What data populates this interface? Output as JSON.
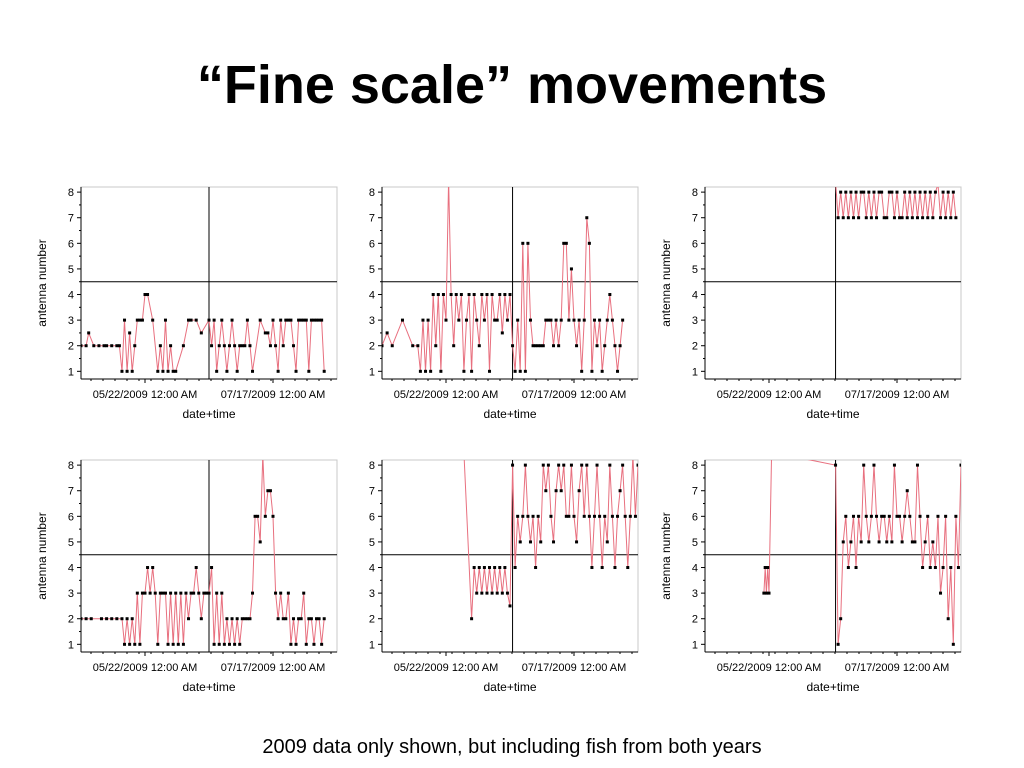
{
  "slide": {
    "title": "“Fine scale” movements",
    "caption": "2009 data only shown, but including fish from both years"
  },
  "colors": {
    "line": "#e8707f",
    "marker": "#000000",
    "reference": "#000000",
    "axis": "#000000"
  },
  "chart_data": [
    {
      "type": "line",
      "xlabel": "date+time",
      "ylabel": "antenna number",
      "x_tick_labels": [
        "05/22/2009 12:00 AM",
        "07/17/2009 12:00 AM"
      ],
      "y_ticks": [
        1,
        2,
        3,
        4,
        5,
        6,
        7,
        8
      ],
      "ylim": [
        0.7,
        8.2
      ],
      "xlim": [
        0,
        100
      ],
      "reference_x": 50,
      "reference_y": 4.5,
      "series": [
        {
          "x": [
            0,
            2,
            3,
            5,
            7,
            9,
            10,
            12,
            14,
            15,
            16,
            17,
            18,
            19,
            20,
            21,
            22,
            23,
            24,
            25,
            26,
            28,
            30,
            31,
            32,
            33,
            34,
            35,
            36,
            37,
            40,
            42,
            43,
            45,
            47,
            50,
            51,
            52,
            53,
            54,
            55,
            56,
            57,
            58,
            59,
            60,
            61,
            62,
            63,
            64,
            65,
            66,
            67,
            70,
            72,
            73,
            74,
            75,
            76,
            77,
            78,
            79,
            80,
            81,
            82,
            83,
            84,
            85,
            86,
            87,
            88,
            89,
            90,
            91,
            92,
            93,
            94,
            95
          ],
          "y": [
            2,
            2,
            2.5,
            2,
            2,
            2,
            2,
            2,
            2,
            2,
            1,
            3,
            1,
            2.5,
            1,
            2,
            3,
            3,
            3,
            4,
            4,
            3,
            1,
            2,
            1,
            3,
            1,
            2,
            1,
            1,
            2,
            3,
            3,
            3,
            2.5,
            3,
            2,
            3,
            1,
            2,
            3,
            2,
            1,
            2,
            3,
            2,
            1,
            2,
            2,
            2,
            3,
            2,
            1,
            3,
            2.5,
            2.5,
            2,
            3,
            2,
            1,
            3,
            2,
            3,
            3,
            3,
            2,
            1,
            3,
            3,
            3,
            3,
            1,
            3,
            3,
            3,
            3,
            3,
            1
          ]
        }
      ]
    },
    {
      "type": "line",
      "xlabel": "date+time",
      "ylabel": "",
      "x_tick_labels": [
        "05/22/2009 12:00 AM",
        "07/17/2009 12:00 AM"
      ],
      "y_ticks": [
        1,
        2,
        3,
        4,
        5,
        6,
        7,
        8
      ],
      "ylim": [
        0.7,
        8.2
      ],
      "xlim": [
        0,
        100
      ],
      "reference_x": 51,
      "reference_y": 4.5,
      "series": [
        {
          "x": [
            0,
            2,
            4,
            8,
            12,
            14,
            15,
            16,
            17,
            18,
            19,
            20,
            21,
            22,
            23,
            24,
            25,
            26,
            27,
            28,
            29,
            30,
            31,
            32,
            33,
            34,
            35,
            36,
            37,
            38,
            39,
            40,
            41,
            42,
            43,
            44,
            45,
            46,
            47,
            48,
            49,
            50,
            51,
            52,
            53,
            54,
            55,
            56,
            57,
            58,
            59,
            60,
            61,
            62,
            63,
            64,
            65,
            66,
            67,
            68,
            69,
            70,
            71,
            72,
            73,
            74,
            75,
            76,
            77,
            78,
            79,
            80,
            81,
            82,
            83,
            84,
            85,
            86,
            87,
            88,
            89,
            90,
            91,
            92,
            93,
            94
          ],
          "y": [
            2,
            2.5,
            2,
            3,
            2,
            2,
            1,
            3,
            1,
            3,
            1,
            4,
            2,
            4,
            1,
            4,
            3,
            8.5,
            4,
            2,
            4,
            3,
            4,
            1,
            3,
            4,
            1,
            4,
            3,
            2,
            4,
            3,
            4,
            1,
            4,
            3,
            3,
            4,
            2.5,
            4,
            3,
            4,
            2,
            1,
            3,
            1,
            6,
            1,
            6,
            3,
            2,
            2,
            2,
            2,
            2,
            3,
            3,
            3,
            2,
            3,
            2,
            3,
            6,
            6,
            3,
            5,
            3,
            2,
            3,
            1,
            3,
            7,
            6,
            1,
            3,
            2,
            3,
            1,
            2,
            3,
            4,
            3,
            2,
            1,
            2,
            3
          ]
        }
      ]
    },
    {
      "type": "line",
      "xlabel": "date+time",
      "ylabel": "antenna number",
      "x_tick_labels": [
        "05/22/2009 12:00 AM",
        "07/17/2009 12:00 AM"
      ],
      "y_ticks": [
        1,
        2,
        3,
        4,
        5,
        6,
        7,
        8
      ],
      "ylim": [
        0.7,
        8.2
      ],
      "xlim": [
        0,
        100
      ],
      "reference_x": 51,
      "reference_y": 4.5,
      "series": [
        {
          "x": [
            51,
            52,
            53,
            54,
            55,
            56,
            57,
            58,
            59,
            60,
            61,
            62,
            63,
            64,
            65,
            66,
            67,
            68,
            69,
            70,
            71,
            72,
            73,
            74,
            75,
            76,
            77,
            78,
            79,
            80,
            81,
            82,
            83,
            84,
            85,
            86,
            87,
            88,
            89,
            90,
            91,
            92,
            93,
            94,
            95,
            96,
            97,
            98
          ],
          "y": [
            8.4,
            7,
            8,
            7,
            8,
            7,
            8,
            7,
            8,
            7,
            8,
            8,
            7,
            8,
            7,
            8,
            7,
            8,
            8,
            7,
            7,
            8,
            8,
            7,
            8,
            7,
            7,
            8,
            7,
            8,
            7,
            8,
            7,
            8,
            7,
            8,
            7,
            8,
            7,
            8,
            8.3,
            7,
            8,
            7,
            8,
            7,
            8,
            7
          ]
        }
      ]
    },
    {
      "type": "line",
      "xlabel": "date+time",
      "ylabel": "antenna number",
      "x_tick_labels": [
        "05/22/2009 12:00 AM",
        "07/17/2009 12:00 AM"
      ],
      "y_ticks": [
        1,
        2,
        3,
        4,
        5,
        6,
        7,
        8
      ],
      "ylim": [
        0.7,
        8.2
      ],
      "xlim": [
        0,
        100
      ],
      "reference_x": 50,
      "reference_y": 4.5,
      "series": [
        {
          "x": [
            0,
            2,
            4,
            8,
            10,
            12,
            14,
            16,
            17,
            18,
            19,
            20,
            21,
            22,
            23,
            24,
            25,
            26,
            27,
            28,
            29,
            30,
            31,
            32,
            33,
            34,
            35,
            36,
            37,
            38,
            39,
            40,
            41,
            42,
            43,
            44,
            45,
            46,
            47,
            48,
            49,
            50,
            51,
            52,
            53,
            54,
            55,
            56,
            57,
            58,
            59,
            60,
            61,
            62,
            63,
            64,
            65,
            66,
            67,
            68,
            69,
            70,
            71,
            72,
            73,
            74,
            75,
            76,
            77,
            78,
            79,
            80,
            81,
            82,
            83,
            84,
            85,
            86,
            87,
            88,
            89,
            90,
            91,
            92,
            93,
            94,
            95
          ],
          "y": [
            2,
            2,
            2,
            2,
            2,
            2,
            2,
            2,
            1,
            2,
            1,
            2,
            1,
            3,
            1,
            3,
            3,
            4,
            3,
            4,
            3,
            1,
            3,
            3,
            3,
            1,
            3,
            1,
            3,
            1,
            3,
            1,
            3,
            2,
            3,
            3,
            4,
            3,
            2,
            3,
            3,
            3,
            4,
            1,
            3,
            1,
            3,
            1,
            2,
            1,
            2,
            1,
            2,
            1,
            2,
            2,
            2,
            2,
            3,
            6,
            6,
            5,
            8.4,
            6,
            7,
            7,
            6,
            3,
            2,
            3,
            2,
            2,
            3,
            1,
            2,
            1,
            2,
            2,
            3,
            1,
            2,
            2,
            1,
            2,
            2,
            1,
            2
          ]
        }
      ]
    },
    {
      "type": "line",
      "xlabel": "date+time",
      "ylabel": "",
      "x_tick_labels": [
        "05/22/2009 12:00 AM",
        "07/17/2009 12:00 AM"
      ],
      "y_ticks": [
        1,
        2,
        3,
        4,
        5,
        6,
        7,
        8
      ],
      "ylim": [
        0.7,
        8.2
      ],
      "xlim": [
        0,
        100
      ],
      "reference_x": 51,
      "reference_y": 4.5,
      "series": [
        {
          "x": [
            32,
            35,
            36,
            37,
            38,
            39,
            40,
            41,
            42,
            43,
            44,
            45,
            46,
            47,
            48,
            49,
            50,
            51,
            52,
            53,
            54,
            55,
            56,
            57,
            58,
            59,
            60,
            61,
            62,
            63,
            64,
            65,
            66,
            67,
            68,
            69,
            70,
            71,
            72,
            73,
            74,
            75,
            76,
            77,
            78,
            79,
            80,
            81,
            82,
            83,
            84,
            85,
            86,
            87,
            88,
            89,
            90,
            91,
            92,
            93,
            94,
            95,
            96,
            97,
            98,
            99,
            100
          ],
          "y": [
            8.5,
            2,
            4,
            3,
            4,
            3,
            4,
            3,
            4,
            3,
            4,
            3,
            4,
            3,
            4,
            3,
            2.5,
            8,
            4,
            6,
            5,
            6,
            8,
            6,
            5,
            6,
            4,
            6,
            5,
            8,
            7,
            8,
            6,
            5,
            7,
            8,
            7,
            8,
            6,
            6,
            8,
            6,
            5,
            7,
            8,
            6,
            8,
            6,
            4,
            6,
            8,
            6,
            4,
            6,
            5,
            8,
            6,
            4,
            6,
            7,
            8,
            6,
            4,
            6,
            8.4,
            6,
            8
          ]
        }
      ]
    },
    {
      "type": "line",
      "xlabel": "date+time",
      "ylabel": "antenna number",
      "x_tick_labels": [
        "05/22/2009 12:00 AM",
        "07/17/2009 12:00 AM"
      ],
      "y_ticks": [
        1,
        2,
        3,
        4,
        5,
        6,
        7,
        8
      ],
      "ylim": [
        0.7,
        8.2
      ],
      "xlim": [
        0,
        100
      ],
      "reference_x": 51,
      "reference_y": 4.5,
      "series": [
        {
          "x": [
            23,
            23.5,
            24,
            24.5,
            25,
            26,
            51,
            52,
            53,
            54,
            55,
            56,
            57,
            58,
            59,
            60,
            61,
            62,
            63,
            64,
            65,
            66,
            67,
            68,
            69,
            70,
            71,
            72,
            73,
            74,
            75,
            76,
            77,
            78,
            79,
            80,
            81,
            82,
            83,
            84,
            85,
            86,
            87,
            88,
            89,
            90,
            91,
            92,
            93,
            94,
            95,
            96,
            97,
            98,
            99,
            100
          ],
          "y": [
            3,
            4,
            3,
            4,
            3,
            8.5,
            8,
            1,
            2,
            5,
            6,
            4,
            5,
            6,
            4,
            6,
            5,
            8,
            6,
            5,
            6,
            8,
            6,
            5,
            6,
            6,
            5,
            6,
            5,
            8,
            6,
            6,
            5,
            6,
            7,
            6,
            5,
            5,
            8,
            6,
            4,
            5,
            6,
            4,
            5,
            4,
            6,
            3,
            4,
            6,
            2,
            4,
            1,
            6,
            4,
            8
          ]
        }
      ]
    }
  ]
}
